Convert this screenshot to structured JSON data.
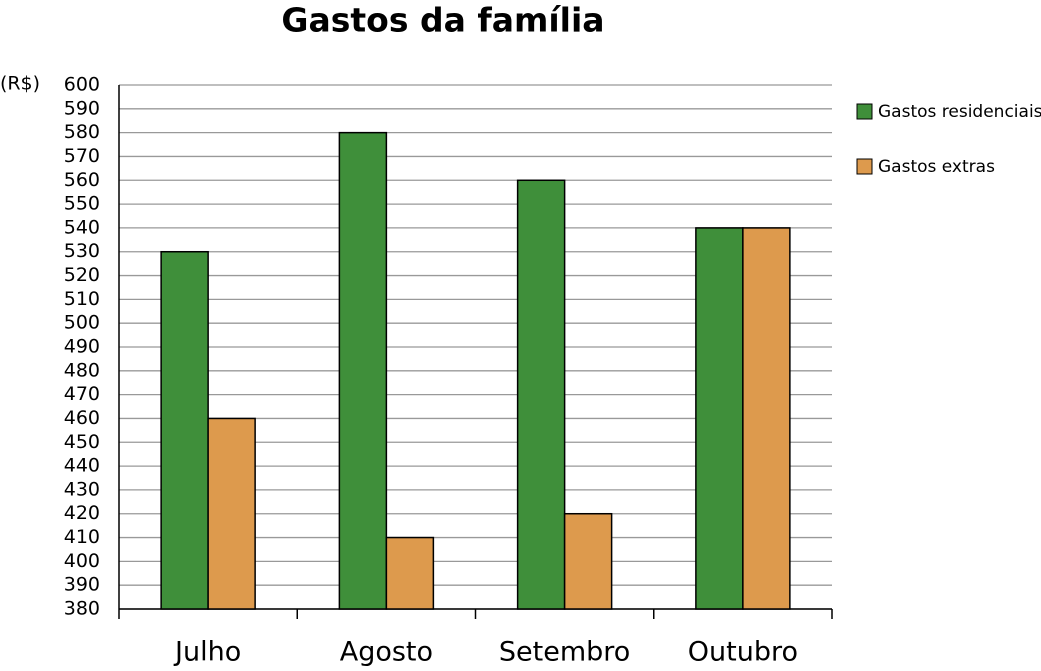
{
  "chart_data": {
    "type": "bar",
    "title": "Gastos da família",
    "y_label": "(R$)",
    "categories": [
      "Julho",
      "Agosto",
      "Setembro",
      "Outubro"
    ],
    "series": [
      {
        "name": "Gastos residenciais",
        "color": "#3f8f3a",
        "values": [
          530,
          580,
          560,
          540
        ]
      },
      {
        "name": "Gastos extras",
        "color": "#dd9a4d",
        "values": [
          460,
          410,
          420,
          540
        ]
      }
    ],
    "ylim": [
      380,
      600
    ],
    "yticks": [
      380,
      390,
      400,
      410,
      420,
      430,
      440,
      450,
      460,
      470,
      480,
      490,
      500,
      510,
      520,
      530,
      540,
      550,
      560,
      570,
      580,
      590,
      600
    ],
    "grid": true,
    "legend": "right"
  }
}
